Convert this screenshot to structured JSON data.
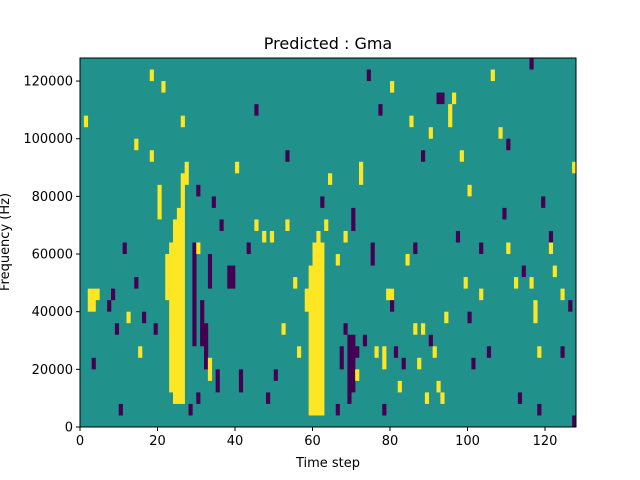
{
  "chart_data": {
    "type": "heatmap",
    "title": "Predicted : Gma",
    "xlabel": "Time step",
    "ylabel": "Frequency (Hz)",
    "xlim": [
      0,
      128
    ],
    "ylim": [
      0,
      128000
    ],
    "x_ticks": [
      0,
      20,
      40,
      60,
      80,
      100,
      120
    ],
    "y_ticks": [
      0,
      20000,
      40000,
      60000,
      80000,
      100000,
      120000
    ],
    "x_tick_labels": [
      "0",
      "20",
      "40",
      "60",
      "80",
      "100",
      "120"
    ],
    "y_tick_labels": [
      "0",
      "20000",
      "40000",
      "60000",
      "80000",
      "100000",
      "120000"
    ],
    "grid": false,
    "colormap": "viridis",
    "colors": {
      "low": "#440154",
      "mid": "#21918c",
      "high": "#fde725"
    },
    "background_value": 0,
    "value_levels": {
      "low": -1,
      "mid": 0,
      "high": 1
    },
    "bin_height_hz": 4000,
    "high_cells": [
      [
        24,
        8000,
        72000
      ],
      [
        25,
        8000,
        76000
      ],
      [
        26,
        8000,
        88000
      ],
      [
        59,
        4000,
        56000
      ],
      [
        60,
        4000,
        64000
      ],
      [
        61,
        4000,
        68000
      ],
      [
        62,
        4000,
        64000
      ],
      [
        2,
        40000,
        48000
      ],
      [
        3,
        40000,
        48000
      ],
      [
        4,
        44000,
        48000
      ],
      [
        22,
        44000,
        60000
      ],
      [
        23,
        12000,
        64000
      ],
      [
        27,
        84000,
        92000
      ],
      [
        14,
        96000,
        100000
      ],
      [
        18,
        92000,
        96000
      ],
      [
        20,
        72000,
        84000
      ],
      [
        18,
        120000,
        124000
      ],
      [
        26,
        104000,
        108000
      ],
      [
        21,
        116000,
        120000
      ],
      [
        40,
        88000,
        92000
      ],
      [
        47,
        64000,
        68000
      ],
      [
        49,
        64000,
        68000
      ],
      [
        53,
        68000,
        72000
      ],
      [
        55,
        48000,
        52000
      ],
      [
        58,
        40000,
        48000
      ],
      [
        63,
        68000,
        72000
      ],
      [
        64,
        84000,
        88000
      ],
      [
        68,
        64000,
        68000
      ],
      [
        72,
        84000,
        92000
      ],
      [
        76,
        24000,
        28000
      ],
      [
        78,
        20000,
        28000
      ],
      [
        79,
        44000,
        48000
      ],
      [
        80,
        44000,
        48000
      ],
      [
        82,
        12000,
        16000
      ],
      [
        84,
        56000,
        60000
      ],
      [
        86,
        32000,
        36000
      ],
      [
        87,
        20000,
        24000
      ],
      [
        88,
        32000,
        36000
      ],
      [
        91,
        24000,
        28000
      ],
      [
        92,
        12000,
        16000
      ],
      [
        93,
        8000,
        12000
      ],
      [
        94,
        36000,
        40000
      ],
      [
        95,
        104000,
        112000
      ],
      [
        96,
        112000,
        116000
      ],
      [
        98,
        92000,
        96000
      ],
      [
        103,
        44000,
        48000
      ],
      [
        106,
        120000,
        124000
      ],
      [
        108,
        100000,
        104000
      ],
      [
        112,
        48000,
        52000
      ],
      [
        116,
        48000,
        52000
      ],
      [
        117,
        36000,
        44000
      ],
      [
        121,
        60000,
        64000
      ],
      [
        122,
        52000,
        56000
      ],
      [
        124,
        44000,
        48000
      ],
      [
        127,
        88000,
        92000
      ],
      [
        118,
        24000,
        28000
      ],
      [
        110,
        60000,
        64000
      ],
      [
        100,
        80000,
        84000
      ],
      [
        90,
        100000,
        104000
      ],
      [
        85,
        104000,
        108000
      ],
      [
        80,
        116000,
        120000
      ],
      [
        1,
        104000,
        108000
      ],
      [
        12,
        36000,
        40000
      ],
      [
        15,
        24000,
        28000
      ],
      [
        30,
        60000,
        64000
      ],
      [
        33,
        16000,
        24000
      ],
      [
        45,
        68000,
        72000
      ],
      [
        52,
        32000,
        36000
      ],
      [
        56,
        24000,
        28000
      ],
      [
        66,
        56000,
        60000
      ],
      [
        71,
        16000,
        20000
      ],
      [
        89,
        8000,
        12000
      ],
      [
        99,
        48000,
        52000
      ]
    ],
    "low_cells": [
      [
        28,
        4000,
        8000
      ],
      [
        29,
        28000,
        64000
      ],
      [
        31,
        28000,
        44000
      ],
      [
        32,
        20000,
        36000
      ],
      [
        33,
        48000,
        60000
      ],
      [
        35,
        12000,
        20000
      ],
      [
        36,
        68000,
        72000
      ],
      [
        38,
        48000,
        56000
      ],
      [
        39,
        48000,
        56000
      ],
      [
        41,
        12000,
        20000
      ],
      [
        43,
        60000,
        64000
      ],
      [
        48,
        8000,
        12000
      ],
      [
        50,
        16000,
        20000
      ],
      [
        66,
        4000,
        8000
      ],
      [
        67,
        20000,
        28000
      ],
      [
        68,
        32000,
        36000
      ],
      [
        69,
        8000,
        32000
      ],
      [
        70,
        12000,
        32000
      ],
      [
        71,
        24000,
        28000
      ],
      [
        73,
        28000,
        32000
      ],
      [
        75,
        56000,
        64000
      ],
      [
        78,
        4000,
        8000
      ],
      [
        80,
        40000,
        48000
      ],
      [
        81,
        24000,
        28000
      ],
      [
        83,
        20000,
        24000
      ],
      [
        86,
        60000,
        64000
      ],
      [
        90,
        28000,
        32000
      ],
      [
        92,
        112000,
        116000
      ],
      [
        93,
        112000,
        116000
      ],
      [
        97,
        64000,
        68000
      ],
      [
        101,
        20000,
        24000
      ],
      [
        103,
        60000,
        64000
      ],
      [
        105,
        24000,
        28000
      ],
      [
        109,
        72000,
        76000
      ],
      [
        113,
        8000,
        12000
      ],
      [
        118,
        4000,
        8000
      ],
      [
        119,
        76000,
        80000
      ],
      [
        124,
        24000,
        28000
      ],
      [
        126,
        40000,
        44000
      ],
      [
        127,
        0,
        4000
      ],
      [
        7,
        40000,
        44000
      ],
      [
        8,
        44000,
        48000
      ],
      [
        9,
        32000,
        36000
      ],
      [
        11,
        60000,
        64000
      ],
      [
        14,
        48000,
        52000
      ],
      [
        16,
        36000,
        40000
      ],
      [
        19,
        32000,
        36000
      ],
      [
        24,
        56000,
        60000
      ],
      [
        30,
        80000,
        84000
      ],
      [
        30,
        8000,
        12000
      ],
      [
        34,
        76000,
        80000
      ],
      [
        45,
        108000,
        112000
      ],
      [
        53,
        92000,
        96000
      ],
      [
        62,
        76000,
        80000
      ],
      [
        70,
        68000,
        76000
      ],
      [
        74,
        120000,
        124000
      ],
      [
        77,
        108000,
        112000
      ],
      [
        88,
        92000,
        96000
      ],
      [
        100,
        36000,
        40000
      ],
      [
        110,
        96000,
        100000
      ],
      [
        114,
        52000,
        56000
      ],
      [
        116,
        124000,
        128000
      ],
      [
        121,
        64000,
        68000
      ],
      [
        3,
        20000,
        24000
      ],
      [
        10,
        4000,
        8000
      ]
    ]
  }
}
